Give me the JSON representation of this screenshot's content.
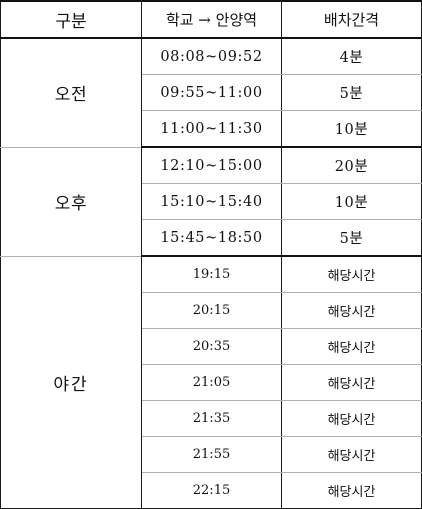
{
  "header": {
    "col1": "구분",
    "col2": "학교 → 안양역",
    "col3": "배차간격"
  },
  "periods": [
    {
      "label": "오전",
      "rows": [
        {
          "time": "08:08~09:52",
          "interval": "4분"
        },
        {
          "time": "09:55~11:00",
          "interval": "5분"
        },
        {
          "time": "11:00~11:30",
          "interval": "10분"
        }
      ]
    },
    {
      "label": "오후",
      "rows": [
        {
          "time": "12:10~15:00",
          "interval": "20분"
        },
        {
          "time": "15:10~15:40",
          "interval": "10분"
        },
        {
          "time": "15:45~18:50",
          "interval": "5분"
        }
      ]
    },
    {
      "label": "야간",
      "rows": [
        {
          "time": "19:15",
          "interval": "해당시간"
        },
        {
          "time": "20:15",
          "interval": "해당시간"
        },
        {
          "time": "20:35",
          "interval": "해당시간"
        },
        {
          "time": "21:05",
          "interval": "해당시간"
        },
        {
          "time": "21:35",
          "interval": "해당시간"
        },
        {
          "time": "21:55",
          "interval": "해당시간"
        },
        {
          "time": "22:15",
          "interval": "해당시간"
        }
      ]
    }
  ]
}
